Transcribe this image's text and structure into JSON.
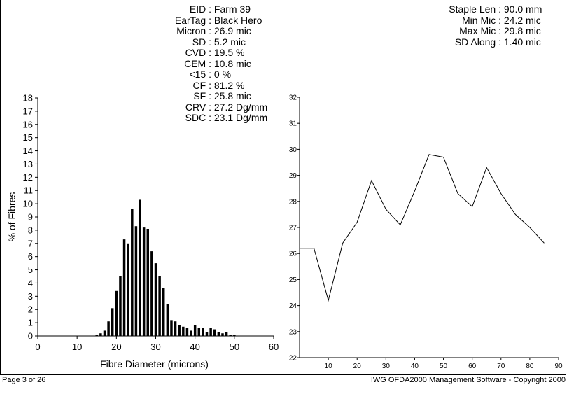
{
  "stats_left": [
    {
      "label": "EID :",
      "value": "Farm 39"
    },
    {
      "label": "EarTag :",
      "value": "Black Hero"
    },
    {
      "label": "Micron :",
      "value": "26.9 mic"
    },
    {
      "label": "SD :",
      "value": "5.2 mic"
    },
    {
      "label": "CVD :",
      "value": "19.5 %"
    },
    {
      "label": "CEM :",
      "value": "10.8 mic"
    },
    {
      "label": "<15 :",
      "value": "0 %"
    },
    {
      "label": "CF :",
      "value": "81.2 %"
    },
    {
      "label": "SF :",
      "value": "25.8 mic"
    },
    {
      "label": "CRV :",
      "value": "27.2 Dg/mm"
    },
    {
      "label": "SDC :",
      "value": "23.1 Dg/mm"
    }
  ],
  "stats_right": [
    {
      "label": "Staple Len :",
      "value": "90.0 mm"
    },
    {
      "label": "Min Mic :",
      "value": "24.2 mic"
    },
    {
      "label": "Max Mic :",
      "value": "29.8 mic"
    },
    {
      "label": "SD Along :",
      "value": "1.40 mic"
    }
  ],
  "footer": {
    "page": "Page 3 of 26",
    "copyright": "IWG OFDA2000 Management Software - Copyright 2000"
  },
  "colors": {
    "ink": "#000000",
    "background": "#ffffff"
  },
  "chart_data": [
    {
      "type": "bar",
      "title": "",
      "xlabel": "Fibre Diameter (microns)",
      "ylabel": "% of Fibres",
      "xlim": [
        0,
        60
      ],
      "ylim": [
        0,
        18
      ],
      "xticks": [
        0,
        10,
        20,
        30,
        40,
        50,
        60
      ],
      "yticks": [
        0,
        1,
        2,
        3,
        4,
        5,
        6,
        7,
        8,
        9,
        10,
        11,
        12,
        13,
        14,
        15,
        16,
        17,
        18
      ],
      "grid": false,
      "x": [
        15,
        16,
        17,
        18,
        19,
        20,
        21,
        22,
        23,
        24,
        25,
        26,
        27,
        28,
        29,
        30,
        31,
        32,
        33,
        34,
        35,
        36,
        37,
        38,
        39,
        40,
        41,
        42,
        43,
        44,
        45,
        46,
        47,
        48,
        49,
        50
      ],
      "values": [
        0.1,
        0.2,
        0.4,
        1.1,
        2.1,
        3.4,
        4.5,
        7.3,
        7.0,
        9.6,
        8.3,
        10.3,
        8.2,
        8.1,
        6.4,
        5.5,
        4.5,
        3.6,
        2.4,
        1.2,
        1.1,
        0.8,
        0.7,
        0.6,
        0.4,
        0.8,
        0.6,
        0.6,
        0.3,
        0.6,
        0.5,
        0.3,
        0.2,
        0.3,
        0.1,
        0.1
      ]
    },
    {
      "type": "line",
      "title": "",
      "xlabel": "",
      "ylabel": "",
      "xlim": [
        0,
        90
      ],
      "ylim": [
        22,
        32
      ],
      "xticks": [
        10,
        20,
        30,
        40,
        50,
        60,
        70,
        80,
        90
      ],
      "yticks": [
        22,
        23,
        24,
        25,
        26,
        27,
        28,
        29,
        30,
        31,
        32
      ],
      "grid": false,
      "x": [
        0,
        5,
        10,
        15,
        20,
        25,
        30,
        35,
        40,
        45,
        50,
        55,
        60,
        65,
        70,
        75,
        80,
        85
      ],
      "values": [
        26.2,
        26.2,
        24.2,
        26.4,
        27.2,
        28.8,
        27.7,
        27.1,
        28.4,
        29.8,
        29.7,
        28.3,
        27.8,
        29.3,
        28.3,
        27.5,
        27.0,
        26.4
      ]
    }
  ]
}
